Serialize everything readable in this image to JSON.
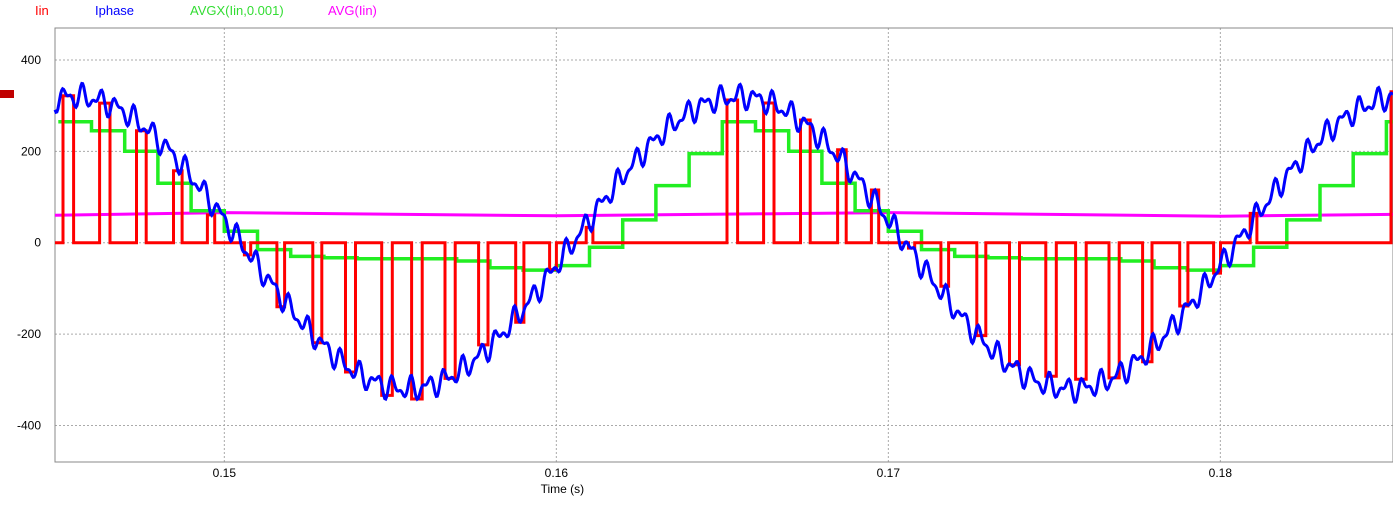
{
  "chart_data": {
    "type": "line",
    "xlabel": "Time (s)",
    "ylabel": "",
    "xlim": [
      0.1449,
      0.1852
    ],
    "ylim": [
      -480,
      470
    ],
    "x_ticks": [
      0.15,
      0.16,
      0.17,
      0.18
    ],
    "x_tick_labels": [
      "0.15",
      "0.16",
      "0.17",
      "0.18"
    ],
    "y_ticks": [
      400,
      200,
      0,
      -200,
      -400
    ],
    "y_tick_labels": [
      "400",
      "200",
      "0",
      "-200",
      "-400"
    ],
    "grid": true,
    "legend_position": "top-left",
    "period": 0.02,
    "series": [
      {
        "name": "Iin",
        "color": "#ff0000",
        "description_of_shape": "pulsed: 0 with pulses to Iphase value",
        "pulse_centers_one_period": [
          0.1453,
          0.1464,
          0.1475,
          0.1486,
          0.1496,
          0.1507,
          0.1517,
          0.1528,
          0.1538,
          0.1549,
          0.1558,
          0.1568,
          0.1578,
          0.1589,
          0.1599,
          0.161
        ]
      },
      {
        "name": "Iphase",
        "color": "#0000ff",
        "description_of_shape": "sinusoid with switching ripple",
        "amplitude": 320,
        "phase_peak_time": 0.1455,
        "ripple_amplitude": 30
      },
      {
        "name": "AVGX(Iin,0.001)",
        "color": "#00ee00",
        "step_times_one_period": [
          0.145,
          0.146,
          0.147,
          0.148,
          0.149,
          0.15,
          0.151,
          0.152,
          0.153,
          0.154,
          0.155,
          0.156,
          0.157,
          0.158,
          0.159,
          0.16,
          0.161,
          0.162,
          0.163,
          0.164
        ],
        "step_values_one_period": [
          265,
          245,
          200,
          130,
          70,
          25,
          -15,
          -30,
          -33,
          -35,
          -35,
          -35,
          -40,
          -55,
          -60,
          -50,
          -10,
          50,
          125,
          195
        ]
      },
      {
        "name": "AVG(Iin)",
        "color": "#ff00ff",
        "x": [
          0.1449,
          0.15,
          0.16,
          0.17,
          0.18,
          0.1852
        ],
        "y": [
          60,
          66,
          59,
          66,
          58,
          62
        ]
      }
    ]
  }
}
